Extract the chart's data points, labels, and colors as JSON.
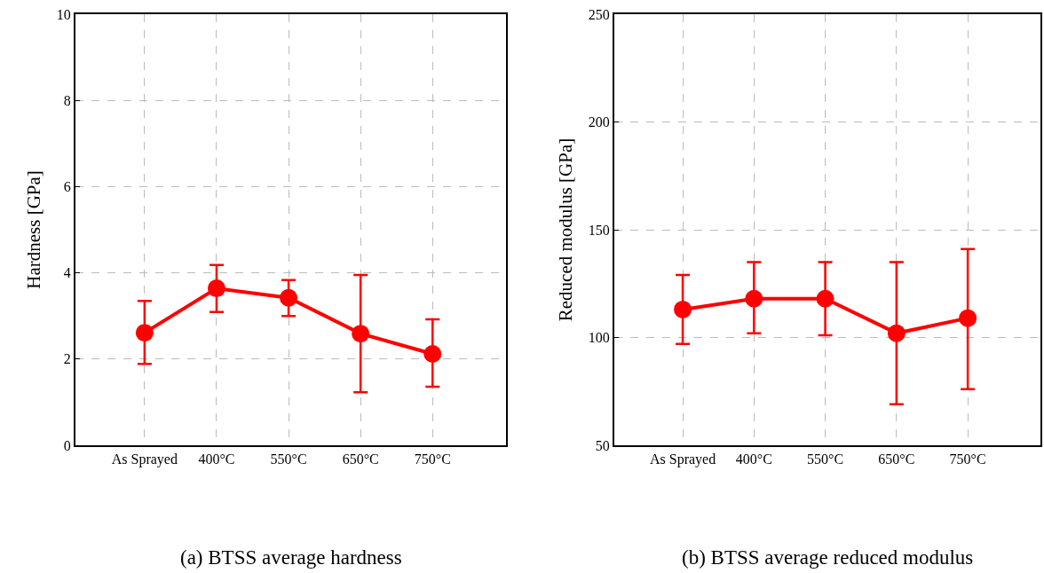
{
  "chart_data": [
    {
      "type": "line",
      "categories": [
        "As Sprayed",
        "400°C",
        "550°C",
        "650°C",
        "750°C"
      ],
      "ylabel": "Hardness [GPa]",
      "ylim": [
        0,
        10
      ],
      "yticks": [
        0,
        2,
        4,
        6,
        8,
        10
      ],
      "grid": true,
      "marker": "circle",
      "line_style": "solid",
      "series": [
        {
          "color": "#ff0000",
          "values": [
            2.61,
            3.64,
            3.42,
            2.59,
            2.12
          ],
          "errors": [
            [
              1.89,
              3.35
            ],
            [
              3.09,
              4.18
            ],
            [
              3.0,
              3.83
            ],
            [
              1.23,
              3.95
            ],
            [
              1.36,
              2.92
            ]
          ]
        }
      ],
      "annotations": [
        "(a) BTSS average hardness"
      ]
    },
    {
      "type": "line",
      "categories": [
        "As Sprayed",
        "400°C",
        "550°C",
        "650°C",
        "750°C"
      ],
      "ylabel": "Reduced modulus [GPa]",
      "ylim": [
        50,
        250
      ],
      "yticks": [
        50,
        100,
        150,
        200,
        250
      ],
      "grid": true,
      "marker": "circle",
      "line_style": "solid",
      "series": [
        {
          "color": "#ff0000",
          "values": [
            113,
            118,
            118,
            102,
            109
          ],
          "errors": [
            [
              97,
              129
            ],
            [
              102,
              135
            ],
            [
              101,
              135
            ],
            [
              69,
              135
            ],
            [
              76,
              141
            ]
          ]
        }
      ],
      "annotations": [
        "(b) BTSS average reduced modulus"
      ]
    }
  ]
}
